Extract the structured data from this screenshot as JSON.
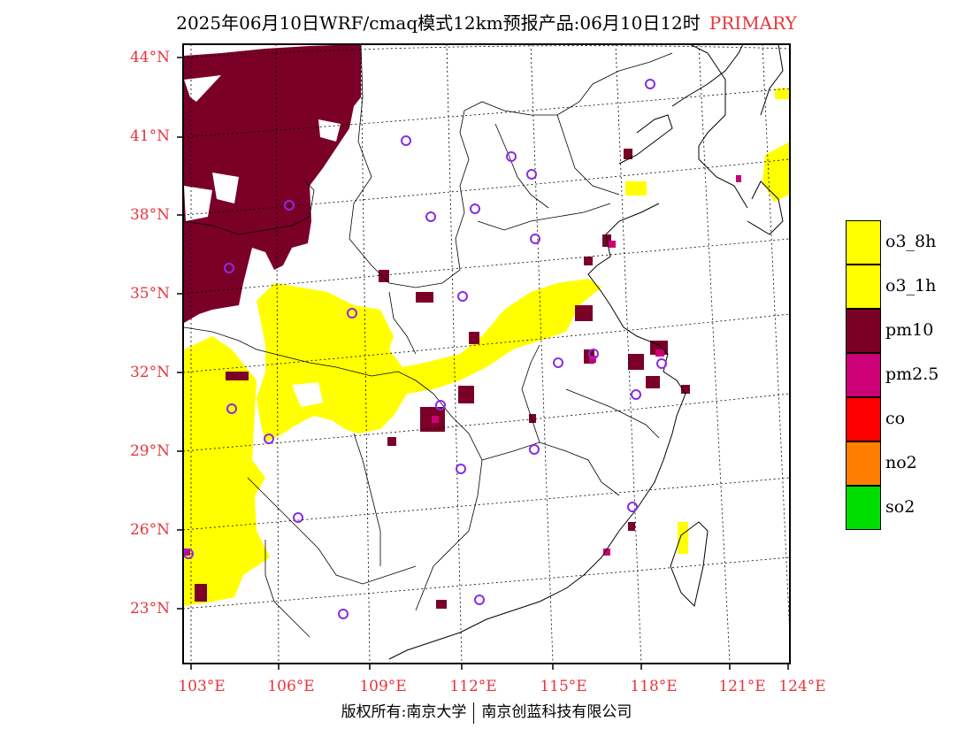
{
  "title": {
    "main": "2025年06月10日WRF/cmaq模式12km预报产品:06月10日12时",
    "tag": "PRIMARY"
  },
  "lat_labels": [
    "44°N",
    "41°N",
    "38°N",
    "35°N",
    "32°N",
    "29°N",
    "26°N",
    "23°N"
  ],
  "lon_labels": [
    "103°E",
    "106°E",
    "109°E",
    "112°E",
    "115°E",
    "118°E",
    "121°E",
    "124°E"
  ],
  "legend": [
    {
      "label": "o3_8h",
      "color": "#ffff00"
    },
    {
      "label": "o3_1h",
      "color": "#ffff00"
    },
    {
      "label": "pm10",
      "color": "#7a0028"
    },
    {
      "label": "pm2.5",
      "color": "#cc0077"
    },
    {
      "label": "co",
      "color": "#ff0000"
    },
    {
      "label": "no2",
      "color": "#ff7f00"
    },
    {
      "label": "so2",
      "color": "#00dd00"
    }
  ],
  "colors": {
    "accent": "#e8343c",
    "o3": "#ffff00",
    "pm10": "#7a0028",
    "pm25": "#cc0077",
    "station": "#8a2be2"
  },
  "copyright": {
    "left": "版权所有:南京大学",
    "right": "南京创蓝科技有限公司"
  }
}
